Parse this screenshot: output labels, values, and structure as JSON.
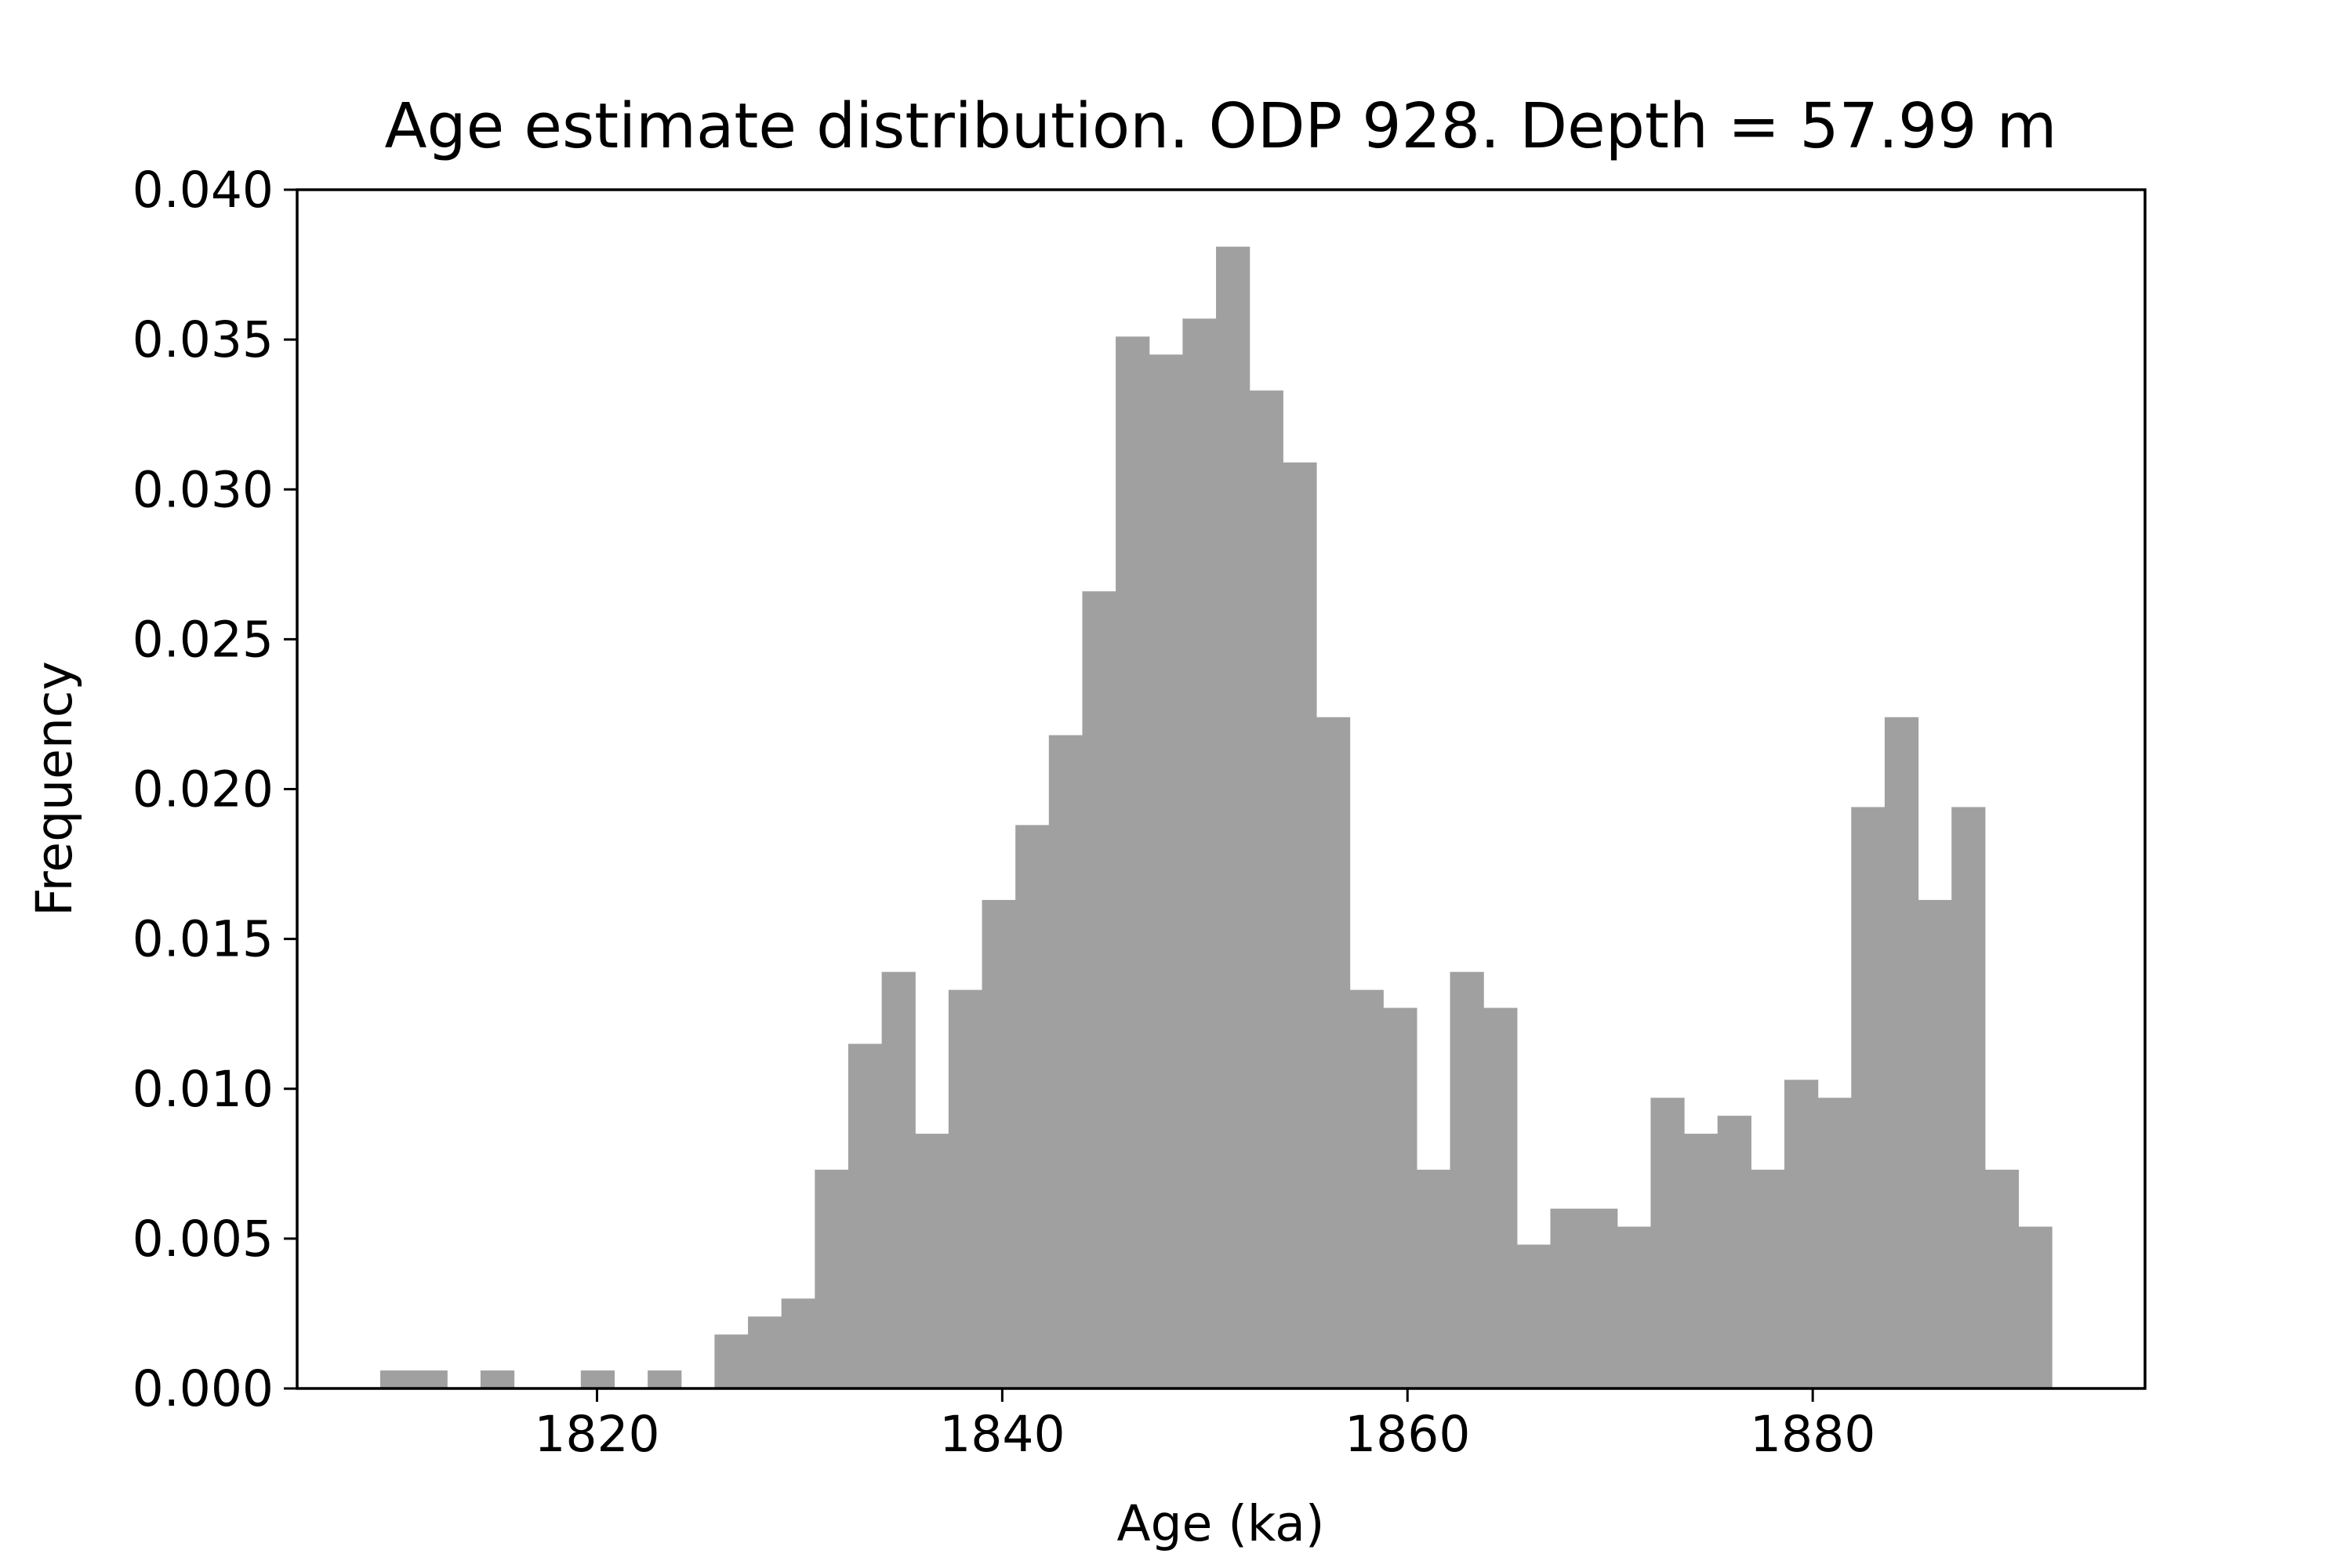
{
  "chart_data": {
    "type": "bar",
    "title": "Age estimate distribution. ODP 928. Depth = 57.99 m",
    "xlabel": "Age (ka)",
    "ylabel": "Frequency",
    "xlim": [
      1805.2,
      1896.4
    ],
    "ylim": [
      0,
      0.04
    ],
    "xticks": [
      1820,
      1840,
      1860,
      1880
    ],
    "xtick_labels": [
      "1820",
      "1840",
      "1860",
      "1880"
    ],
    "yticks": [
      0,
      0.005,
      0.01,
      0.015,
      0.02,
      0.025,
      0.03,
      0.035,
      0.04
    ],
    "ytick_labels": [
      "0.000",
      "0.005",
      "0.010",
      "0.015",
      "0.020",
      "0.025",
      "0.030",
      "0.035",
      "0.040"
    ],
    "grid": false,
    "legend": "none",
    "bar_color": "#a0a0a0",
    "bin_start": 1809.3,
    "bin_width": 1.65,
    "values": [
      0.0006,
      0.0006,
      0,
      0.0006,
      0,
      0,
      0.0006,
      0,
      0.0006,
      0,
      0.0018,
      0.0024,
      0.003,
      0.0073,
      0.0115,
      0.0139,
      0.0085,
      0.0133,
      0.0163,
      0.0188,
      0.0218,
      0.0266,
      0.0351,
      0.0345,
      0.0357,
      0.0381,
      0.0333,
      0.0309,
      0.0224,
      0.0133,
      0.0127,
      0.0073,
      0.0139,
      0.0127,
      0.0048,
      0.006,
      0.006,
      0.0054,
      0.0097,
      0.0085,
      0.0091,
      0.0073,
      0.0103,
      0.0097,
      0.0194,
      0.0224,
      0.0163,
      0.0194,
      0.0073,
      0.0054
    ]
  }
}
